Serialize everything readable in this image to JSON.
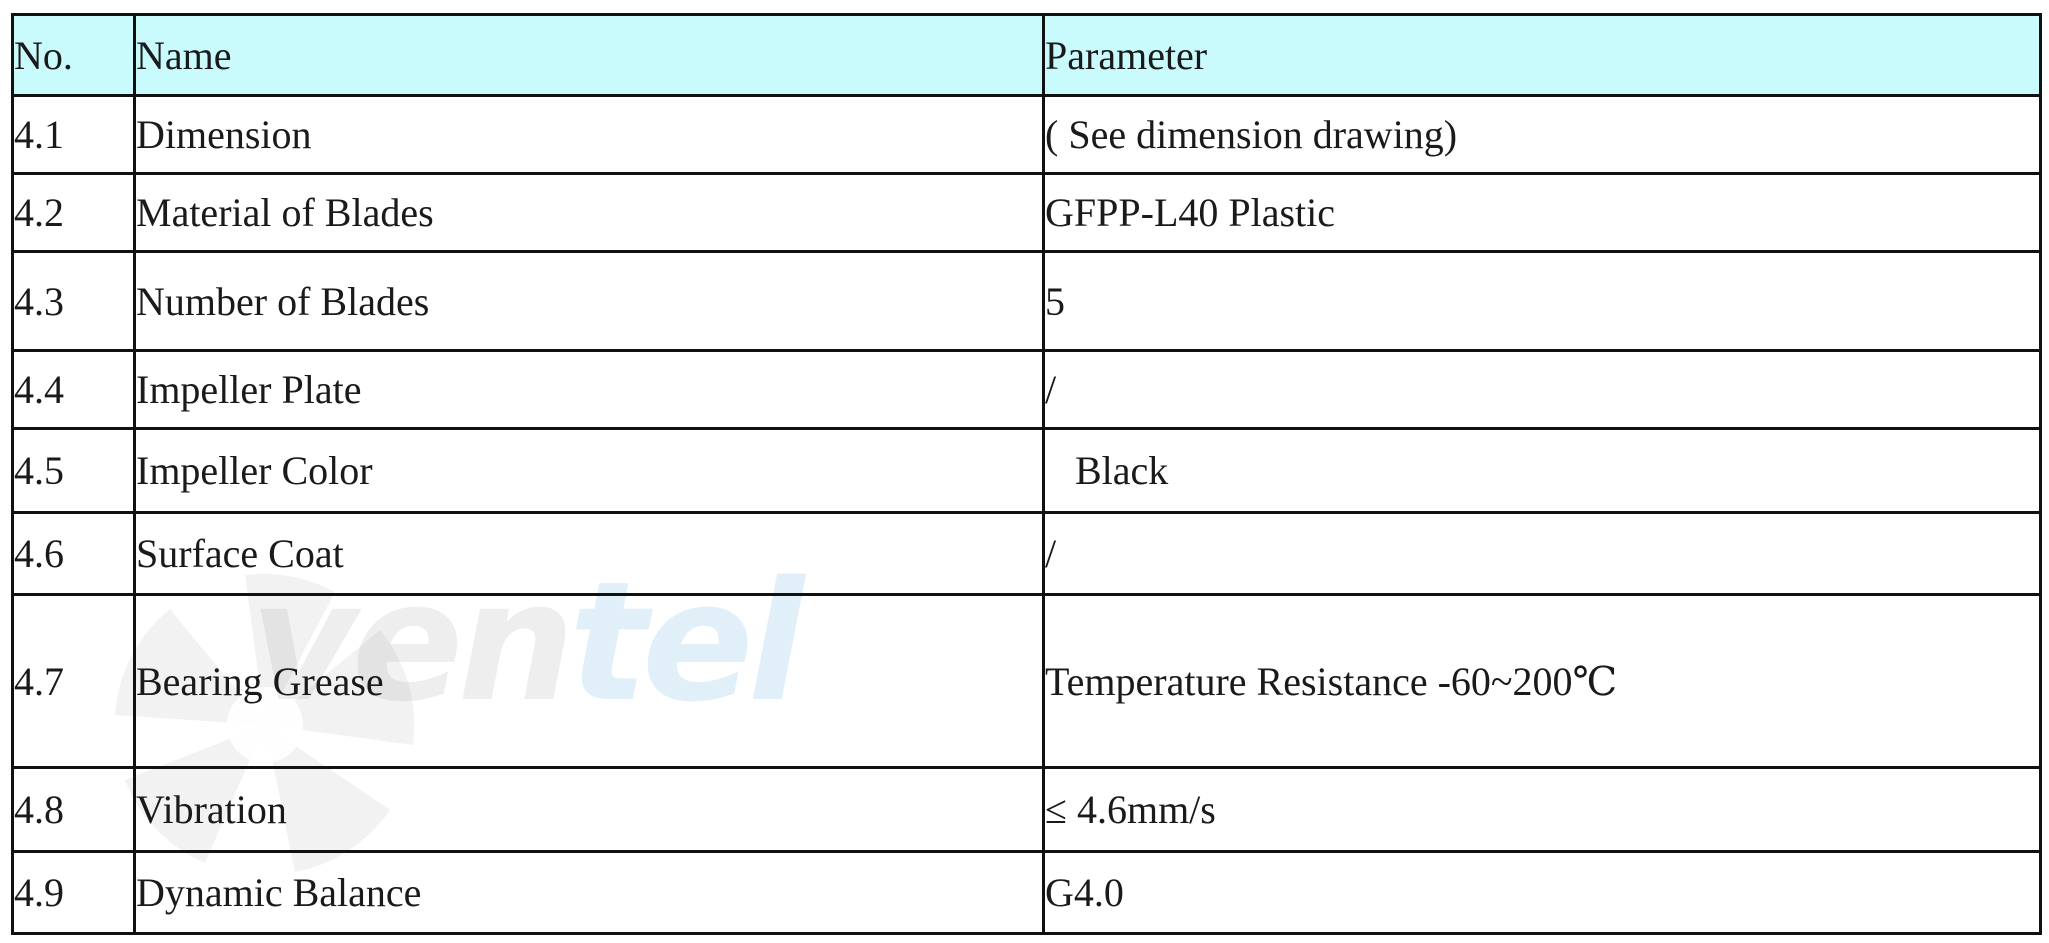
{
  "table": {
    "headers": {
      "no": "No.",
      "name": "Name",
      "parameter": "Parameter"
    },
    "header_color": "#c9fbfd",
    "rows": [
      {
        "no": "4.1",
        "name": "Dimension",
        "parameter": "( See dimension drawing)"
      },
      {
        "no": "4.2",
        "name": "Material of Blades",
        "parameter": "GFPP-L40 Plastic"
      },
      {
        "no": "4.3",
        "name": "Number of Blades",
        "parameter": "5"
      },
      {
        "no": "4.4",
        "name": "Impeller Plate",
        "parameter": "/"
      },
      {
        "no": "4.5",
        "name": "Impeller Color",
        "parameter": "Black"
      },
      {
        "no": "4.6",
        "name": "Surface Coat",
        "parameter": "/"
      },
      {
        "no": "4.7",
        "name": "Bearing Grease",
        "parameter": "Temperature Resistance -60~200℃"
      },
      {
        "no": "4.8",
        "name": "Vibration",
        "parameter": "≤ 4.6mm/s"
      },
      {
        "no": "4.9",
        "name": "Dynamic Balance",
        "parameter": "G4.0"
      }
    ]
  },
  "watermark": {
    "text_part1": "ven",
    "text_part2": "tel",
    "icon": "fan-icon"
  }
}
